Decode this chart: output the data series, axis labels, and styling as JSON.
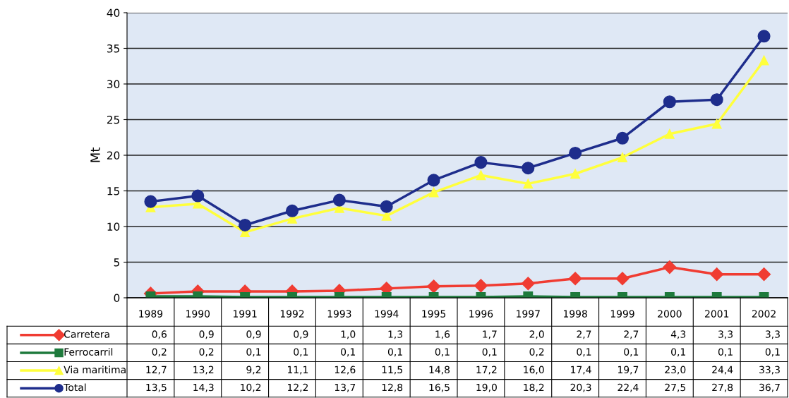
{
  "chart_data": {
    "type": "line",
    "ylabel": "Mt",
    "categories": [
      "1989",
      "1990",
      "1991",
      "1992",
      "1993",
      "1994",
      "1995",
      "1996",
      "1997",
      "1998",
      "1999",
      "2000",
      "2001",
      "2002"
    ],
    "series": [
      {
        "name": "Carretera",
        "color": "#f03c32",
        "marker": "diamond",
        "values": [
          0.6,
          0.9,
          0.9,
          0.9,
          1.0,
          1.3,
          1.6,
          1.7,
          2.0,
          2.7,
          2.7,
          4.3,
          3.3,
          3.3
        ],
        "value_labels": [
          "0,6",
          "0,9",
          "0,9",
          "0,9",
          "1,0",
          "1,3",
          "1,6",
          "1,7",
          "2,0",
          "2,7",
          "2,7",
          "4,3",
          "3,3",
          "3,3"
        ]
      },
      {
        "name": "Ferrocarril",
        "color": "#1e7a3c",
        "marker": "square",
        "values": [
          0.2,
          0.2,
          0.1,
          0.1,
          0.1,
          0.1,
          0.1,
          0.1,
          0.2,
          0.1,
          0.1,
          0.1,
          0.1,
          0.1
        ],
        "value_labels": [
          "0,2",
          "0,2",
          "0,1",
          "0,1",
          "0,1",
          "0,1",
          "0,1",
          "0,1",
          "0,2",
          "0,1",
          "0,1",
          "0,1",
          "0,1",
          "0,1"
        ]
      },
      {
        "name": "Via maritima",
        "color": "#ffff3c",
        "marker": "triangle",
        "values": [
          12.7,
          13.2,
          9.2,
          11.1,
          12.6,
          11.5,
          14.8,
          17.2,
          16.0,
          17.4,
          19.7,
          23.0,
          24.4,
          33.3
        ],
        "value_labels": [
          "12,7",
          "13,2",
          "9,2",
          "11,1",
          "12,6",
          "11,5",
          "14,8",
          "17,2",
          "16,0",
          "17,4",
          "19,7",
          "23,0",
          "24,4",
          "33,3"
        ]
      },
      {
        "name": "Total",
        "color": "#1e2d8c",
        "marker": "circle",
        "values": [
          13.5,
          14.3,
          10.2,
          12.2,
          13.7,
          12.8,
          16.5,
          19.0,
          18.2,
          20.3,
          22.4,
          27.5,
          27.8,
          36.7
        ],
        "value_labels": [
          "13,5",
          "14,3",
          "10,2",
          "12,2",
          "13,7",
          "12,8",
          "16,5",
          "19,0",
          "18,2",
          "20,3",
          "22,4",
          "27,5",
          "27,8",
          "36,7"
        ]
      }
    ],
    "ylim": [
      0,
      40
    ],
    "yticks": [
      0,
      5,
      10,
      15,
      20,
      25,
      30,
      35,
      40
    ],
    "grid": "y",
    "legend": "bottom left"
  }
}
